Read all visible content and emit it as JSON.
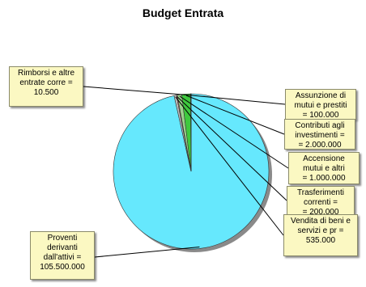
{
  "chart_data": {
    "type": "pie",
    "title": "Budget Entrata",
    "slices": [
      {
        "label": "Proventi derivanti dall'attivi",
        "value": 105500000,
        "color": "#66e8fd"
      },
      {
        "label": "Vendita di beni e servizi e pr",
        "value": 535000,
        "color": "#bfbfbf"
      },
      {
        "label": "Trasferimenti correnti",
        "value": 200000,
        "color": "#ff8080"
      },
      {
        "label": "Accensione mutui e altri",
        "value": 1000000,
        "color": "#9bd38e"
      },
      {
        "label": "Contributi agli investimenti",
        "value": 2000000,
        "color": "#3ec93e"
      },
      {
        "label": "Assunzione di mutui e prestiti",
        "value": 100000,
        "color": "#d7b6e8"
      },
      {
        "label": "Rimborsi e altre entrate corre",
        "value": 10500,
        "color": "#333333"
      }
    ]
  },
  "callouts": [
    {
      "text": "Rimborsi e altre\nentrate corre =\n10.500"
    },
    {
      "text": "Assunzione di\nmutui e prestiti\n= 100.000"
    },
    {
      "text": "Contributi agli\ninvestimenti =\n= 2.000.000"
    },
    {
      "text": "Accensione\nmutui e altri\n= 1.000.000"
    },
    {
      "text": "Trasferimenti\ncorrenti =\n= 200.000"
    },
    {
      "text": "Vendita di beni e\nservizi e pr =\n535.000"
    },
    {
      "text": "Proventi\nderivanti\ndall'attivi =\n105.500.000"
    }
  ]
}
